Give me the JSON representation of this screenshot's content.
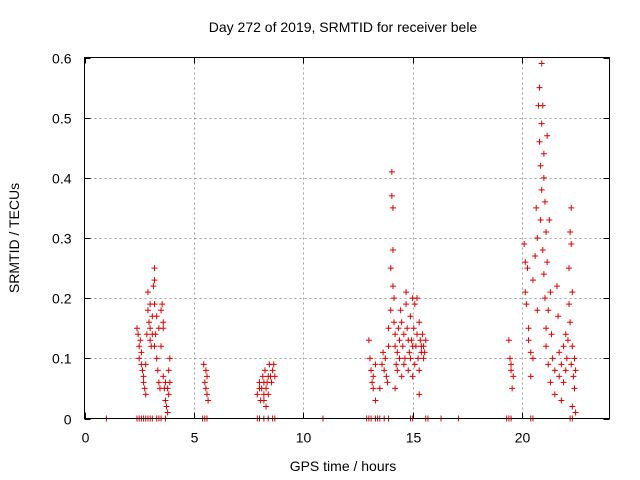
{
  "chart_data": {
    "type": "scatter",
    "title": "Day 272 of 2019, SRMTID for receiver bele",
    "xlabel": "GPS time / hours",
    "ylabel": "SRMTID / TECUs",
    "xlim": [
      0,
      24
    ],
    "ylim": [
      0,
      0.6
    ],
    "xticks": [
      0,
      5,
      10,
      15,
      20
    ],
    "xtick_labels": [
      "0",
      "5",
      "10",
      "15",
      "20"
    ],
    "yticks": [
      0,
      0.1,
      0.2,
      0.3,
      0.4,
      0.5,
      0.6
    ],
    "ytick_labels": [
      "0",
      "0.1",
      "0.2",
      "0.3",
      "0.4",
      "0.5",
      "0.6"
    ],
    "grid": true,
    "marker": "+",
    "marker_color": "#e00000",
    "series": [
      {
        "name": "SRMTID",
        "points": [
          [
            1.0,
            0.0
          ],
          [
            10.9,
            0.0
          ],
          [
            13.4,
            0.0
          ],
          [
            17.1,
            0.0
          ],
          [
            2.4,
            0.0
          ],
          [
            2.5,
            0.0
          ],
          [
            2.6,
            0.0
          ],
          [
            2.7,
            0.0
          ],
          [
            2.8,
            0.0
          ],
          [
            2.9,
            0.0
          ],
          [
            3.0,
            0.0
          ],
          [
            3.1,
            0.0
          ],
          [
            3.3,
            0.0
          ],
          [
            3.4,
            0.0
          ],
          [
            3.5,
            0.0
          ],
          [
            3.7,
            0.0
          ],
          [
            5.4,
            0.0
          ],
          [
            5.5,
            0.0
          ],
          [
            5.6,
            0.0
          ],
          [
            7.9,
            0.0
          ],
          [
            8.0,
            0.0
          ],
          [
            8.2,
            0.0
          ],
          [
            8.4,
            0.0
          ],
          [
            8.6,
            0.0
          ],
          [
            8.7,
            0.0
          ],
          [
            12.9,
            0.0
          ],
          [
            13.0,
            0.0
          ],
          [
            13.1,
            0.0
          ],
          [
            13.3,
            0.0
          ],
          [
            13.5,
            0.0
          ],
          [
            13.7,
            0.0
          ],
          [
            13.9,
            0.0
          ],
          [
            14.9,
            0.0
          ],
          [
            15.0,
            0.0
          ],
          [
            15.6,
            0.0
          ],
          [
            15.7,
            0.0
          ],
          [
            16.3,
            0.0
          ],
          [
            19.3,
            0.0
          ],
          [
            19.4,
            0.0
          ],
          [
            19.5,
            0.0
          ],
          [
            20.4,
            0.0
          ],
          [
            20.5,
            0.0
          ],
          [
            22.2,
            0.0
          ],
          [
            22.3,
            0.0
          ],
          [
            2.4,
            0.15
          ],
          [
            2.45,
            0.14
          ],
          [
            2.5,
            0.12
          ],
          [
            2.5,
            0.1
          ],
          [
            2.55,
            0.13
          ],
          [
            2.6,
            0.09
          ],
          [
            2.6,
            0.11
          ],
          [
            2.65,
            0.08
          ],
          [
            2.7,
            0.06
          ],
          [
            2.7,
            0.07
          ],
          [
            2.75,
            0.05
          ],
          [
            2.8,
            0.04
          ],
          [
            2.8,
            0.09
          ],
          [
            2.85,
            0.14
          ],
          [
            2.9,
            0.18
          ],
          [
            2.9,
            0.21
          ],
          [
            2.95,
            0.16
          ],
          [
            3.0,
            0.19
          ],
          [
            3.0,
            0.15
          ],
          [
            3.0,
            0.13
          ],
          [
            3.05,
            0.12
          ],
          [
            3.1,
            0.17
          ],
          [
            3.1,
            0.14
          ],
          [
            3.15,
            0.22
          ],
          [
            3.2,
            0.25
          ],
          [
            3.2,
            0.23
          ],
          [
            3.2,
            0.19
          ],
          [
            3.2,
            0.12
          ],
          [
            3.25,
            0.14
          ],
          [
            3.3,
            0.1
          ],
          [
            3.3,
            0.17
          ],
          [
            3.35,
            0.08
          ],
          [
            3.4,
            0.06
          ],
          [
            3.4,
            0.15
          ],
          [
            3.45,
            0.05
          ],
          [
            3.5,
            0.12
          ],
          [
            3.5,
            0.18
          ],
          [
            3.55,
            0.19
          ],
          [
            3.6,
            0.15
          ],
          [
            3.6,
            0.16
          ],
          [
            3.6,
            0.07
          ],
          [
            3.65,
            0.05
          ],
          [
            3.7,
            0.06
          ],
          [
            3.7,
            0.03
          ],
          [
            3.75,
            0.02
          ],
          [
            3.8,
            0.05
          ],
          [
            3.8,
            0.01
          ],
          [
            3.85,
            0.08
          ],
          [
            3.85,
            0.04
          ],
          [
            3.9,
            0.1
          ],
          [
            3.9,
            0.06
          ],
          [
            5.45,
            0.09
          ],
          [
            5.5,
            0.06
          ],
          [
            5.55,
            0.05
          ],
          [
            5.6,
            0.04
          ],
          [
            5.6,
            0.07
          ],
          [
            5.65,
            0.03
          ],
          [
            5.55,
            0.08
          ],
          [
            7.9,
            0.04
          ],
          [
            8.0,
            0.05
          ],
          [
            8.0,
            0.06
          ],
          [
            8.05,
            0.03
          ],
          [
            8.1,
            0.05
          ],
          [
            8.15,
            0.07
          ],
          [
            8.2,
            0.04
          ],
          [
            8.2,
            0.06
          ],
          [
            8.25,
            0.08
          ],
          [
            8.3,
            0.05
          ],
          [
            8.35,
            0.06
          ],
          [
            8.4,
            0.07
          ],
          [
            8.4,
            0.04
          ],
          [
            8.45,
            0.09
          ],
          [
            8.5,
            0.07
          ],
          [
            8.55,
            0.06
          ],
          [
            8.6,
            0.08
          ],
          [
            8.65,
            0.09
          ],
          [
            8.7,
            0.07
          ],
          [
            8.2,
            0.03
          ],
          [
            8.3,
            0.02
          ],
          [
            13.0,
            0.13
          ],
          [
            13.05,
            0.1
          ],
          [
            13.1,
            0.08
          ],
          [
            13.15,
            0.06
          ],
          [
            13.2,
            0.07
          ],
          [
            13.2,
            0.05
          ],
          [
            13.3,
            0.03
          ],
          [
            13.3,
            0.09
          ],
          [
            13.5,
            0.05
          ],
          [
            13.6,
            0.09
          ],
          [
            13.65,
            0.11
          ],
          [
            13.7,
            0.08
          ],
          [
            13.75,
            0.1
          ],
          [
            13.8,
            0.07
          ],
          [
            13.85,
            0.06
          ],
          [
            13.9,
            0.15
          ],
          [
            13.9,
            0.12
          ],
          [
            14.0,
            0.25
          ],
          [
            14.0,
            0.18
          ],
          [
            14.05,
            0.41
          ],
          [
            14.05,
            0.37
          ],
          [
            14.1,
            0.35
          ],
          [
            14.1,
            0.28
          ],
          [
            14.1,
            0.22
          ],
          [
            14.15,
            0.2
          ],
          [
            14.15,
            0.16
          ],
          [
            14.2,
            0.14
          ],
          [
            14.2,
            0.12
          ],
          [
            14.25,
            0.09
          ],
          [
            14.3,
            0.11
          ],
          [
            14.3,
            0.08
          ],
          [
            14.35,
            0.15
          ],
          [
            14.4,
            0.13
          ],
          [
            14.4,
            0.1
          ],
          [
            14.45,
            0.18
          ],
          [
            14.5,
            0.16
          ],
          [
            14.5,
            0.07
          ],
          [
            14.55,
            0.12
          ],
          [
            14.6,
            0.14
          ],
          [
            14.6,
            0.09
          ],
          [
            14.65,
            0.1
          ],
          [
            14.7,
            0.21
          ],
          [
            14.7,
            0.19
          ],
          [
            14.75,
            0.15
          ],
          [
            14.8,
            0.13
          ],
          [
            14.8,
            0.08
          ],
          [
            14.85,
            0.11
          ],
          [
            14.9,
            0.17
          ],
          [
            14.9,
            0.1
          ],
          [
            14.95,
            0.13
          ],
          [
            15.0,
            0.2
          ],
          [
            15.0,
            0.12
          ],
          [
            15.0,
            0.07
          ],
          [
            15.05,
            0.15
          ],
          [
            15.1,
            0.19
          ],
          [
            15.1,
            0.09
          ],
          [
            15.15,
            0.12
          ],
          [
            15.2,
            0.2
          ],
          [
            15.2,
            0.14
          ],
          [
            15.25,
            0.1
          ],
          [
            15.3,
            0.16
          ],
          [
            15.3,
            0.08
          ],
          [
            15.35,
            0.13
          ],
          [
            15.4,
            0.11
          ],
          [
            15.4,
            0.12
          ],
          [
            15.45,
            0.14
          ],
          [
            15.5,
            0.1
          ],
          [
            15.5,
            0.12
          ],
          [
            15.55,
            0.11
          ],
          [
            15.6,
            0.13
          ],
          [
            15.3,
            0.04
          ],
          [
            14.2,
            0.05
          ],
          [
            19.4,
            0.13
          ],
          [
            19.45,
            0.1
          ],
          [
            19.5,
            0.09
          ],
          [
            19.5,
            0.08
          ],
          [
            19.55,
            0.05
          ],
          [
            19.6,
            0.07
          ],
          [
            20.1,
            0.29
          ],
          [
            20.15,
            0.26
          ],
          [
            20.15,
            0.21
          ],
          [
            20.2,
            0.19
          ],
          [
            20.25,
            0.25
          ],
          [
            20.3,
            0.15
          ],
          [
            20.3,
            0.13
          ],
          [
            20.4,
            0.11
          ],
          [
            20.4,
            0.07
          ],
          [
            20.5,
            0.1
          ],
          [
            20.5,
            0.23
          ],
          [
            20.6,
            0.27
          ],
          [
            20.65,
            0.35
          ],
          [
            20.7,
            0.3
          ],
          [
            20.7,
            0.18
          ],
          [
            20.75,
            0.52
          ],
          [
            20.8,
            0.55
          ],
          [
            20.8,
            0.46
          ],
          [
            20.85,
            0.42
          ],
          [
            20.85,
            0.33
          ],
          [
            20.9,
            0.59
          ],
          [
            20.9,
            0.49
          ],
          [
            20.9,
            0.38
          ],
          [
            20.95,
            0.52
          ],
          [
            20.95,
            0.28
          ],
          [
            21.0,
            0.44
          ],
          [
            21.0,
            0.4
          ],
          [
            21.0,
            0.24
          ],
          [
            21.05,
            0.36
          ],
          [
            21.05,
            0.2
          ],
          [
            21.1,
            0.31
          ],
          [
            21.1,
            0.15
          ],
          [
            21.1,
            0.12
          ],
          [
            21.15,
            0.47
          ],
          [
            21.15,
            0.26
          ],
          [
            21.2,
            0.18
          ],
          [
            21.2,
            0.09
          ],
          [
            21.25,
            0.33
          ],
          [
            21.3,
            0.21
          ],
          [
            21.3,
            0.06
          ],
          [
            21.35,
            0.14
          ],
          [
            21.4,
            0.1
          ],
          [
            21.5,
            0.08
          ],
          [
            21.5,
            0.04
          ],
          [
            21.6,
            0.22
          ],
          [
            21.65,
            0.17
          ],
          [
            21.7,
            0.11
          ],
          [
            21.7,
            0.07
          ],
          [
            21.8,
            0.09
          ],
          [
            21.8,
            0.03
          ],
          [
            21.9,
            0.12
          ],
          [
            21.9,
            0.06
          ],
          [
            22.0,
            0.14
          ],
          [
            22.0,
            0.08
          ],
          [
            22.05,
            0.1
          ],
          [
            22.1,
            0.13
          ],
          [
            22.15,
            0.25
          ],
          [
            22.15,
            0.19
          ],
          [
            22.2,
            0.31
          ],
          [
            22.2,
            0.16
          ],
          [
            22.25,
            0.35
          ],
          [
            22.25,
            0.29
          ],
          [
            22.25,
            0.09
          ],
          [
            22.3,
            0.21
          ],
          [
            22.3,
            0.12
          ],
          [
            22.3,
            0.02
          ],
          [
            22.35,
            0.07
          ],
          [
            22.4,
            0.1
          ],
          [
            22.4,
            0.05
          ],
          [
            22.45,
            0.08
          ],
          [
            22.45,
            0.01
          ]
        ]
      }
    ]
  }
}
